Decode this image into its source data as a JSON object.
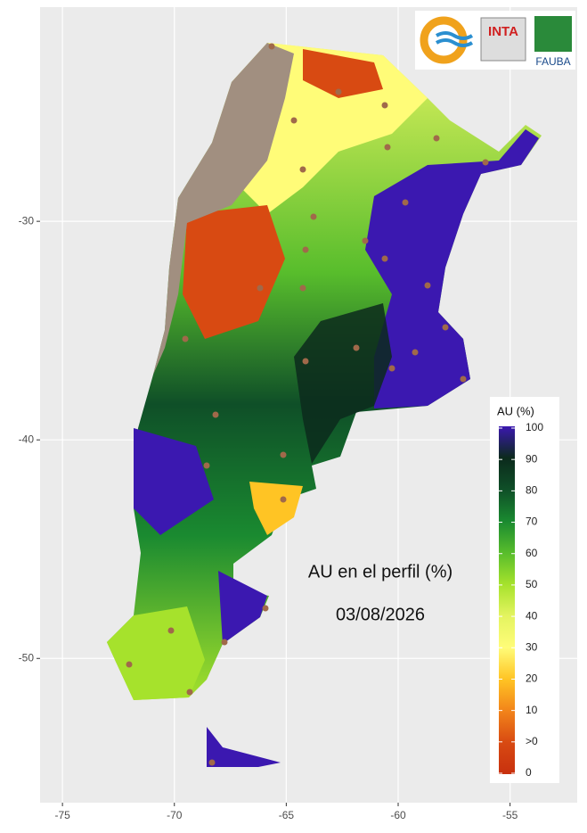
{
  "map": {
    "annotation": "AU en el perfil (%)",
    "date": "03/08/2026",
    "logos": [
      "INTA",
      "FAUBA"
    ],
    "xlim": [
      -76,
      -52
    ],
    "ylim": [
      -56.6,
      -20.2
    ],
    "xticks": [
      -75,
      -70,
      -65,
      -60,
      -55
    ],
    "yticks": [
      -30,
      -40,
      -50
    ],
    "legend": {
      "title": "AU (%)",
      "labels": [
        "100",
        "90",
        "80",
        "70",
        "60",
        "50",
        "40",
        "30",
        "20",
        "10",
        ">0",
        "0"
      ],
      "colors": [
        "#3b18b0",
        "#0c2a1c",
        "#0f4f28",
        "#1a8a30",
        "#58bd2c",
        "#a6e22c",
        "#e4f460",
        "#fffc78",
        "#ffc424",
        "#f2841a",
        "#d84a12",
        "#c8300e"
      ]
    }
  }
}
